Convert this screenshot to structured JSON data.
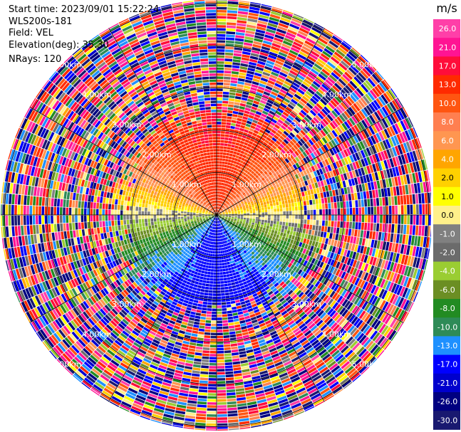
{
  "info": {
    "start_time": "Start time: 2023/09/01 15:22:24",
    "instrument": "WLS200s-181",
    "field": "Field: VEL",
    "elevation": "Elevation(deg): 35.30",
    "nrays": "NRays: 120"
  },
  "chart_data": {
    "type": "heatmap",
    "projection": "polar-ppi",
    "field": "VEL",
    "nrays": 120,
    "elevation_deg": 35.3,
    "range_ring_labels": [
      "1.00km",
      "2.00km",
      "3.00km",
      "4.00km",
      "5.00km"
    ],
    "range_rings_km": [
      1,
      2,
      3,
      4,
      5
    ],
    "colorbar": {
      "unit": "m/s",
      "tick_labels": [
        "26.0",
        "21.0",
        "17.0",
        "13.0",
        "10.0",
        "8.0",
        "6.0",
        "4.0",
        "2.0",
        "1.0",
        "0.0",
        "-1.0",
        "-2.0",
        "-4.0",
        "-6.0",
        "-8.0",
        "-10.0",
        "-13.0",
        "-17.0",
        "-21.0",
        "-26.0",
        "-30.0"
      ],
      "colors": [
        "#ff3fa8",
        "#ff1493",
        "#ff0d3a",
        "#ff2a00",
        "#ff5511",
        "#ff7f50",
        "#ff9650",
        "#ffa500",
        "#ffd000",
        "#ffff00",
        "#fff08a",
        "#808080",
        "#6b6b6b",
        "#9acd32",
        "#6b8e23",
        "#228b22",
        "#2e8b57",
        "#1e90ff",
        "#0000ff",
        "#0000cd",
        "#000080",
        "#191970"
      ]
    },
    "pattern": "approaching winds (red) to the north, receding (blue) to the south, near-zero (yellow/grey) along east-west axis; noisy data beyond ~2.4 km"
  }
}
